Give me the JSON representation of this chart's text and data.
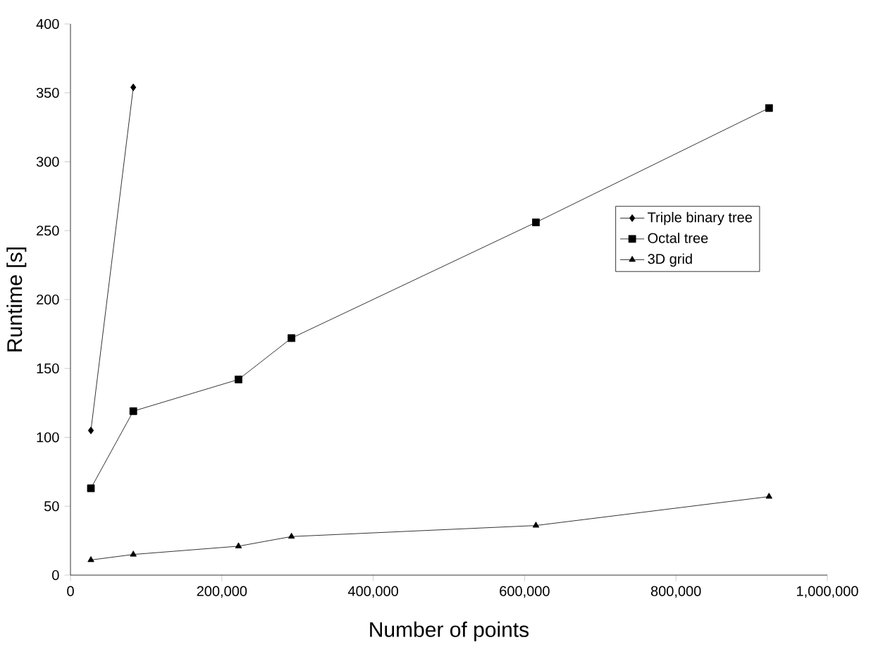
{
  "chart_data": {
    "type": "line",
    "xlabel": "Number of points",
    "ylabel": "Runtime [s]",
    "xlim": [
      0,
      1000000
    ],
    "ylim": [
      0,
      400
    ],
    "xticks": [
      {
        "value": 0,
        "label": "0"
      },
      {
        "value": 200000,
        "label": "200,000"
      },
      {
        "value": 400000,
        "label": "400,000"
      },
      {
        "value": 600000,
        "label": "600,000"
      },
      {
        "value": 800000,
        "label": "800,000"
      },
      {
        "value": 1000000,
        "label": "1,000,000"
      }
    ],
    "yticks": [
      0,
      50,
      100,
      150,
      200,
      250,
      300,
      350,
      400
    ],
    "grid": false,
    "legend": "right",
    "line_style": "solid",
    "series": [
      {
        "name": "Triple binary tree",
        "color": "#000000",
        "marker": "diamond",
        "x": [
          27000,
          83000
        ],
        "values": [
          105,
          354
        ]
      },
      {
        "name": "Octal tree",
        "color": "#000000",
        "marker": "square",
        "x": [
          27000,
          83000,
          222000,
          292000,
          615000,
          923000
        ],
        "values": [
          63,
          119,
          142,
          172,
          256,
          339
        ]
      },
      {
        "name": "3D grid",
        "color": "#000000",
        "marker": "triangle",
        "x": [
          27000,
          83000,
          222000,
          292000,
          615000,
          923000
        ],
        "values": [
          11,
          15,
          21,
          28,
          36,
          57
        ]
      }
    ]
  }
}
